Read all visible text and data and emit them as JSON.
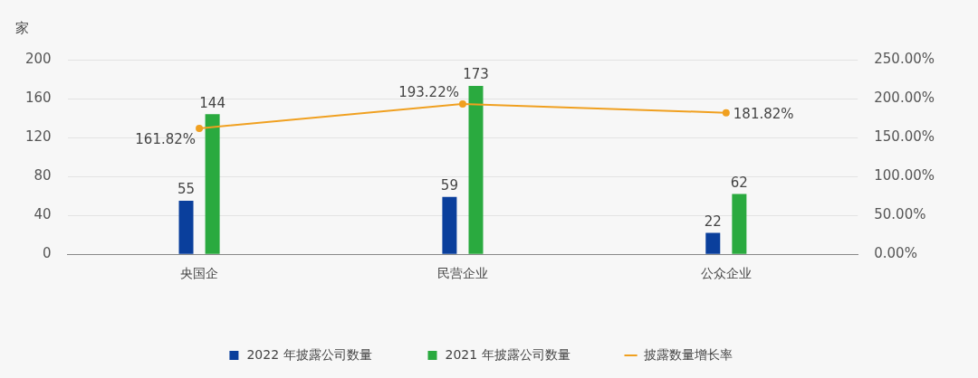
{
  "chart_data": {
    "type": "bar",
    "ylabel": "家",
    "categories": [
      "央国企",
      "民营企业",
      "公众企业"
    ],
    "series": [
      {
        "name": "2022 年披露公司数量",
        "color": "#0a3f9c",
        "values": [
          55,
          59,
          22
        ],
        "value_labels": [
          "55",
          "59",
          "22"
        ]
      },
      {
        "name": "2021 年披露公司数量",
        "color": "#2aaa3f",
        "values": [
          144,
          173,
          62
        ],
        "value_labels": [
          "144",
          "173",
          "62"
        ]
      },
      {
        "name": "披露数量增长率",
        "type": "line",
        "axis": "y2",
        "color": "#f0a020",
        "values": [
          161.82,
          193.22,
          181.82
        ],
        "value_labels": [
          "161.82%",
          "193.22%",
          "181.82%"
        ]
      }
    ],
    "ylim": [
      0,
      200
    ],
    "yticks": [
      0,
      40,
      80,
      120,
      160,
      200
    ],
    "y2lim": [
      0,
      250
    ],
    "y2ticks": [
      {
        "value": 0,
        "label": "0.00%"
      },
      {
        "value": 50,
        "label": "50.00%"
      },
      {
        "value": 100,
        "label": "100.00%"
      },
      {
        "value": 150,
        "label": "150.00%"
      },
      {
        "value": 200,
        "label": "200.00%"
      },
      {
        "value": 250,
        "label": "250.00%"
      }
    ],
    "grid": "y",
    "legend": "bottom",
    "marker": "circle",
    "line_style": "solid"
  }
}
